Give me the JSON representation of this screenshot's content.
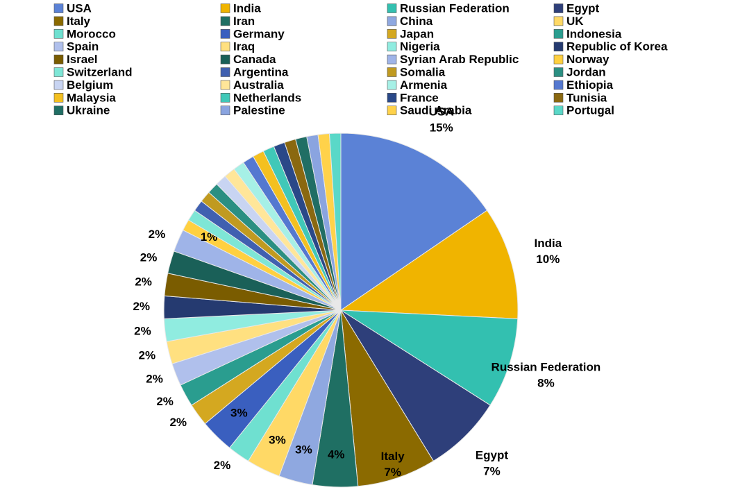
{
  "chart_data": {
    "type": "pie",
    "categories": [
      "USA",
      "India",
      "Russian Federation",
      "Egypt",
      "Italy",
      "Iran",
      "China",
      "UK",
      "Morocco",
      "Germany",
      "Japan",
      "Indonesia",
      "Spain",
      "Iraq",
      "Nigeria",
      "Republic of Korea",
      "Israel",
      "Canada",
      "Syrian Arab Republic",
      "Norway",
      "Switzerland",
      "Argentina",
      "Somalia",
      "Jordan",
      "Belgium",
      "Australia",
      "Armenia",
      "Ethiopia",
      "Malaysia",
      "Netherlands",
      "France",
      "Tunisia",
      "Ukraine",
      "Palestine",
      "Saudi Arabia",
      "Portugal"
    ],
    "values": [
      15,
      10,
      8,
      7,
      7,
      4,
      3,
      3,
      2,
      3,
      2,
      2,
      2,
      2,
      2,
      2,
      2,
      2,
      2,
      1,
      1,
      1,
      1,
      1,
      1,
      1,
      1,
      1,
      1,
      1,
      1,
      1,
      1,
      1,
      1,
      1
    ],
    "value_labels": [
      "15%",
      "10%",
      "8%",
      "7%",
      "7%",
      "4%",
      "3%",
      "3%",
      "2%",
      "3%",
      "2%",
      "2%",
      "2%",
      "2%",
      "2%",
      "2%",
      "2%",
      "2%",
      "2%",
      "1%",
      null,
      null,
      null,
      null,
      null,
      null,
      null,
      null,
      null,
      null,
      null,
      null,
      null,
      null,
      null,
      null
    ],
    "colors": [
      "#5b82d6",
      "#f0b400",
      "#33c0b0",
      "#2e3f7a",
      "#8b6a00",
      "#1f6f63",
      "#8fa8e0",
      "#ffd966",
      "#6fe0d0",
      "#3a5fbf",
      "#d4a820",
      "#2a9d8f",
      "#b0c0ec",
      "#ffe080",
      "#90ece0",
      "#253a70",
      "#7a5c00",
      "#1a6058",
      "#9fb4e8",
      "#ffd040",
      "#7ee6d6",
      "#4060b0",
      "#c09a20",
      "#2b8f82",
      "#c8d4f2",
      "#ffe699",
      "#a6f0e6",
      "#5478d0",
      "#f4c020",
      "#40c8b8",
      "#2a4888",
      "#8a6810",
      "#206e64",
      "#8aa4e0",
      "#ffd24a",
      "#5ad8c8"
    ],
    "legend": "top"
  }
}
